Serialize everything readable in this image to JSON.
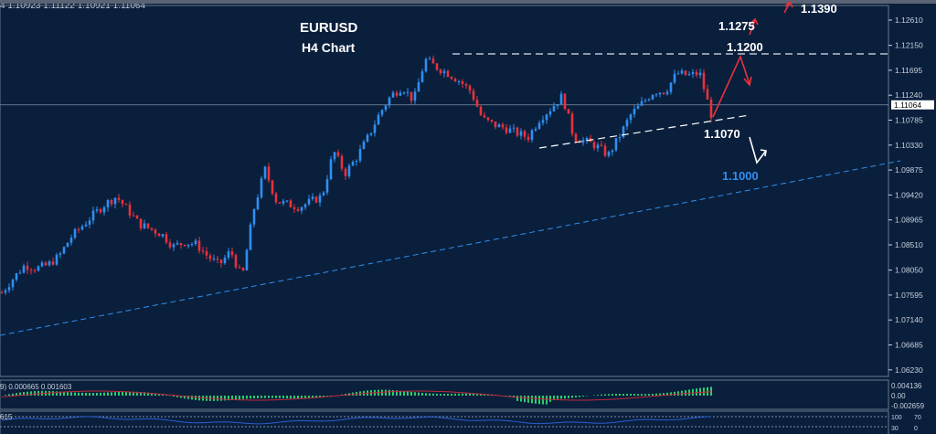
{
  "header": {
    "ohlc": "4  1.10923 1.11122 1.10921 1.11064"
  },
  "colors": {
    "background": "#0a1f3c",
    "bull": "#2f8ff0",
    "bear": "#e8323c",
    "grid_text": "#c8d0dc",
    "macd_hist": "#2ecc71",
    "macd_signal": "#c0283a",
    "rsi": "#2a5fd0",
    "support_line": "#2f8ff0",
    "annotation_white": "#ffffff",
    "annotation_blue": "#2f8ff0",
    "arrow_red": "#e8323c"
  },
  "chart_data": {
    "type": "candlestick",
    "symbol": "EURUSD",
    "title": "EURUSD",
    "subtitle": "H4 Chart",
    "ylim": [
      1.06,
      1.129
    ],
    "current_price": "1.11064",
    "y_ticks": [
      "1.12610",
      "1.12150",
      "1.11695",
      "1.11240",
      "1.10785",
      "1.10330",
      "1.09875",
      "1.09420",
      "1.08965",
      "1.08510",
      "1.08050",
      "1.07595",
      "1.07140",
      "1.06685",
      "1.06230"
    ],
    "approx_closes": [
      1.0764,
      1.079,
      1.0814,
      1.0808,
      1.0814,
      1.083,
      1.0864,
      1.0885,
      1.0906,
      1.0925,
      1.0939,
      1.0915,
      1.0889,
      1.088,
      1.087,
      1.0848,
      1.0856,
      1.0852,
      1.083,
      1.0814,
      1.084,
      1.079,
      1.0914,
      1.0989,
      1.0931,
      1.0925,
      1.092,
      1.093,
      1.094,
      1.1022,
      1.0981,
      1.101,
      1.1047,
      1.109,
      1.1123,
      1.1139,
      1.1114,
      1.1189,
      1.1175,
      1.1164,
      1.115,
      1.1131,
      1.1081,
      1.107,
      1.1064,
      1.1055,
      1.1047,
      1.1081,
      1.11,
      1.1123,
      1.1047,
      1.104,
      1.1031,
      1.1014,
      1.105,
      1.1089,
      1.111,
      1.1131,
      1.1131,
      1.1164,
      1.116,
      1.1164,
      1.1089
    ],
    "annotations": {
      "levels": [
        "1.1390",
        "1.1275",
        "1.1200",
        "1.1070",
        "1.1000"
      ],
      "resistance_level": 1.12,
      "support_trendline": "1.1070",
      "long_trendline": "1.1000"
    },
    "macd": {
      "label": "9) 0.000665 0.001603",
      "ticks": [
        "0.004136",
        "0.00",
        "-0.002659"
      ]
    },
    "rsi": {
      "label": "615",
      "ticks": [
        "100",
        "70",
        "30",
        "0"
      ]
    }
  }
}
